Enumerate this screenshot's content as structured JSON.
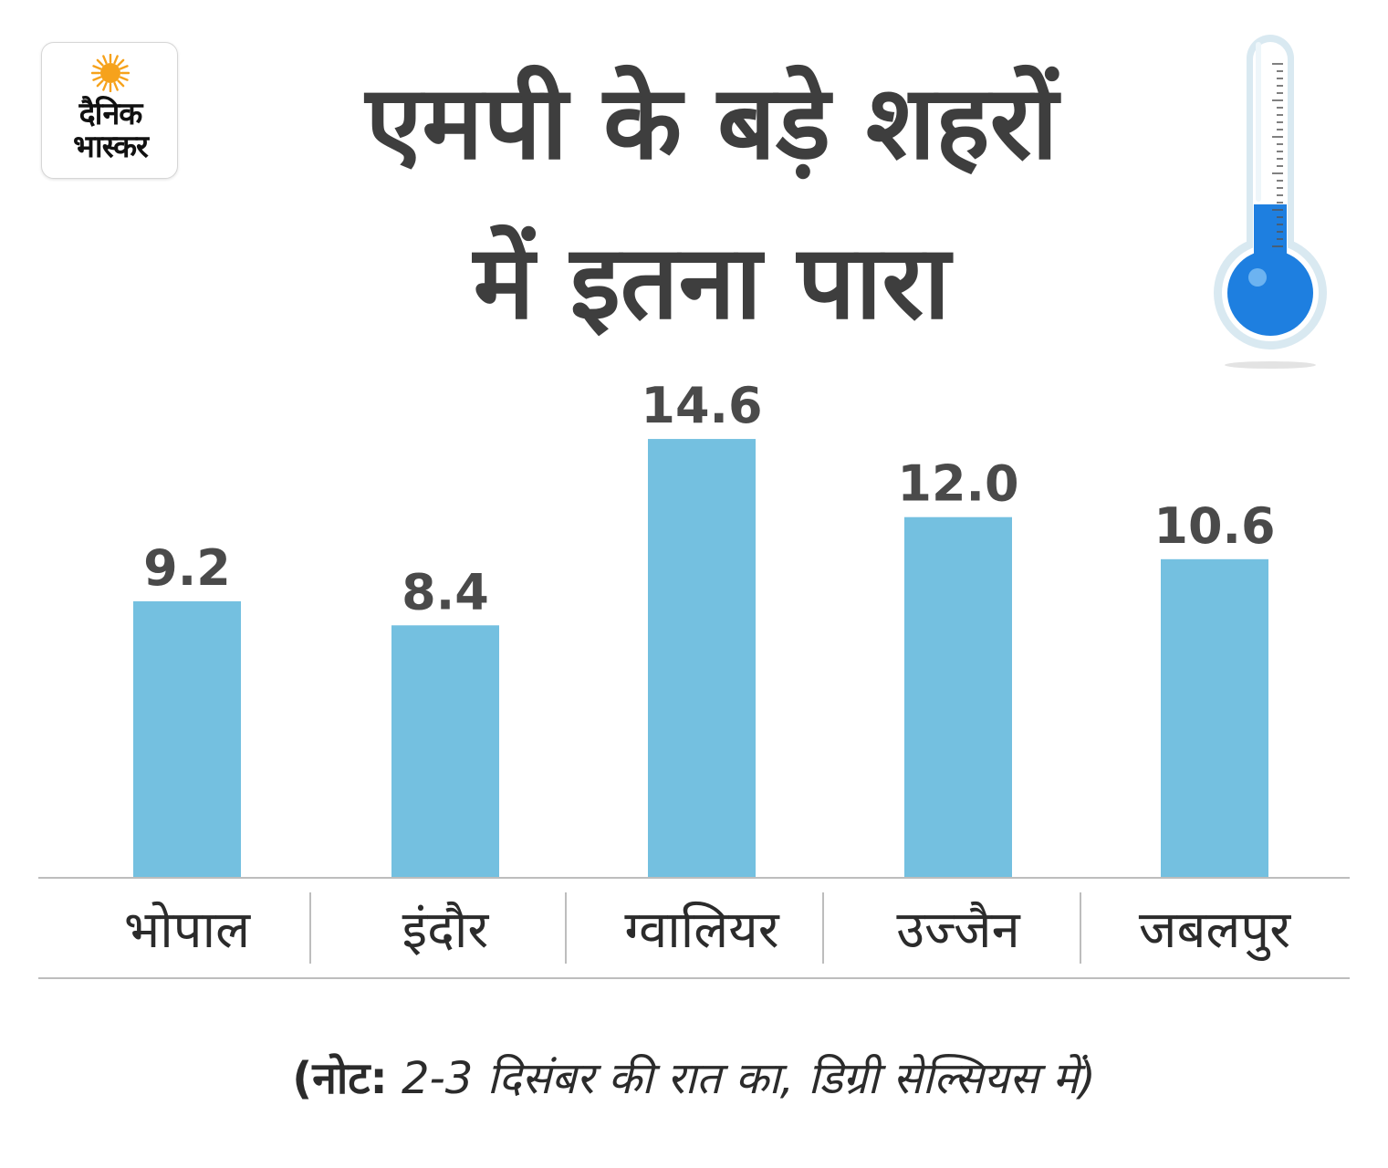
{
  "logo": {
    "line1": "दैनिक",
    "line2": "भास्कर"
  },
  "title": {
    "line1": "एमपी के बड़े शहरों",
    "line2": "में इतना पारा"
  },
  "icons": {
    "thermometer": "thermometer-icon",
    "sun": "sun-icon"
  },
  "colors": {
    "bar": "#74c0e0",
    "text": "#4a4a4a",
    "axis": "#bdbdbd",
    "mercury": "#1e7fe0",
    "logo_sun": "#f6a21c"
  },
  "chart_data": {
    "type": "bar",
    "title": "एमपी के बड़े शहरों में इतना पारा",
    "categories": [
      "भोपाल",
      "इंदौर",
      "ग्वालियर",
      "उज्जैन",
      "जबलपुर"
    ],
    "values": [
      9.2,
      8.4,
      14.6,
      12.0,
      10.6
    ],
    "value_labels": [
      "9.2",
      "8.4",
      "14.6",
      "12.0",
      "10.6"
    ],
    "xlabel": "",
    "ylabel": "",
    "ylim": [
      0,
      17.0
    ],
    "grid": false,
    "legend": "none"
  },
  "note": {
    "label": "(नोट:",
    "text": " 2-3 दिसंबर की रात का, डिग्री सेल्सियस में)"
  }
}
